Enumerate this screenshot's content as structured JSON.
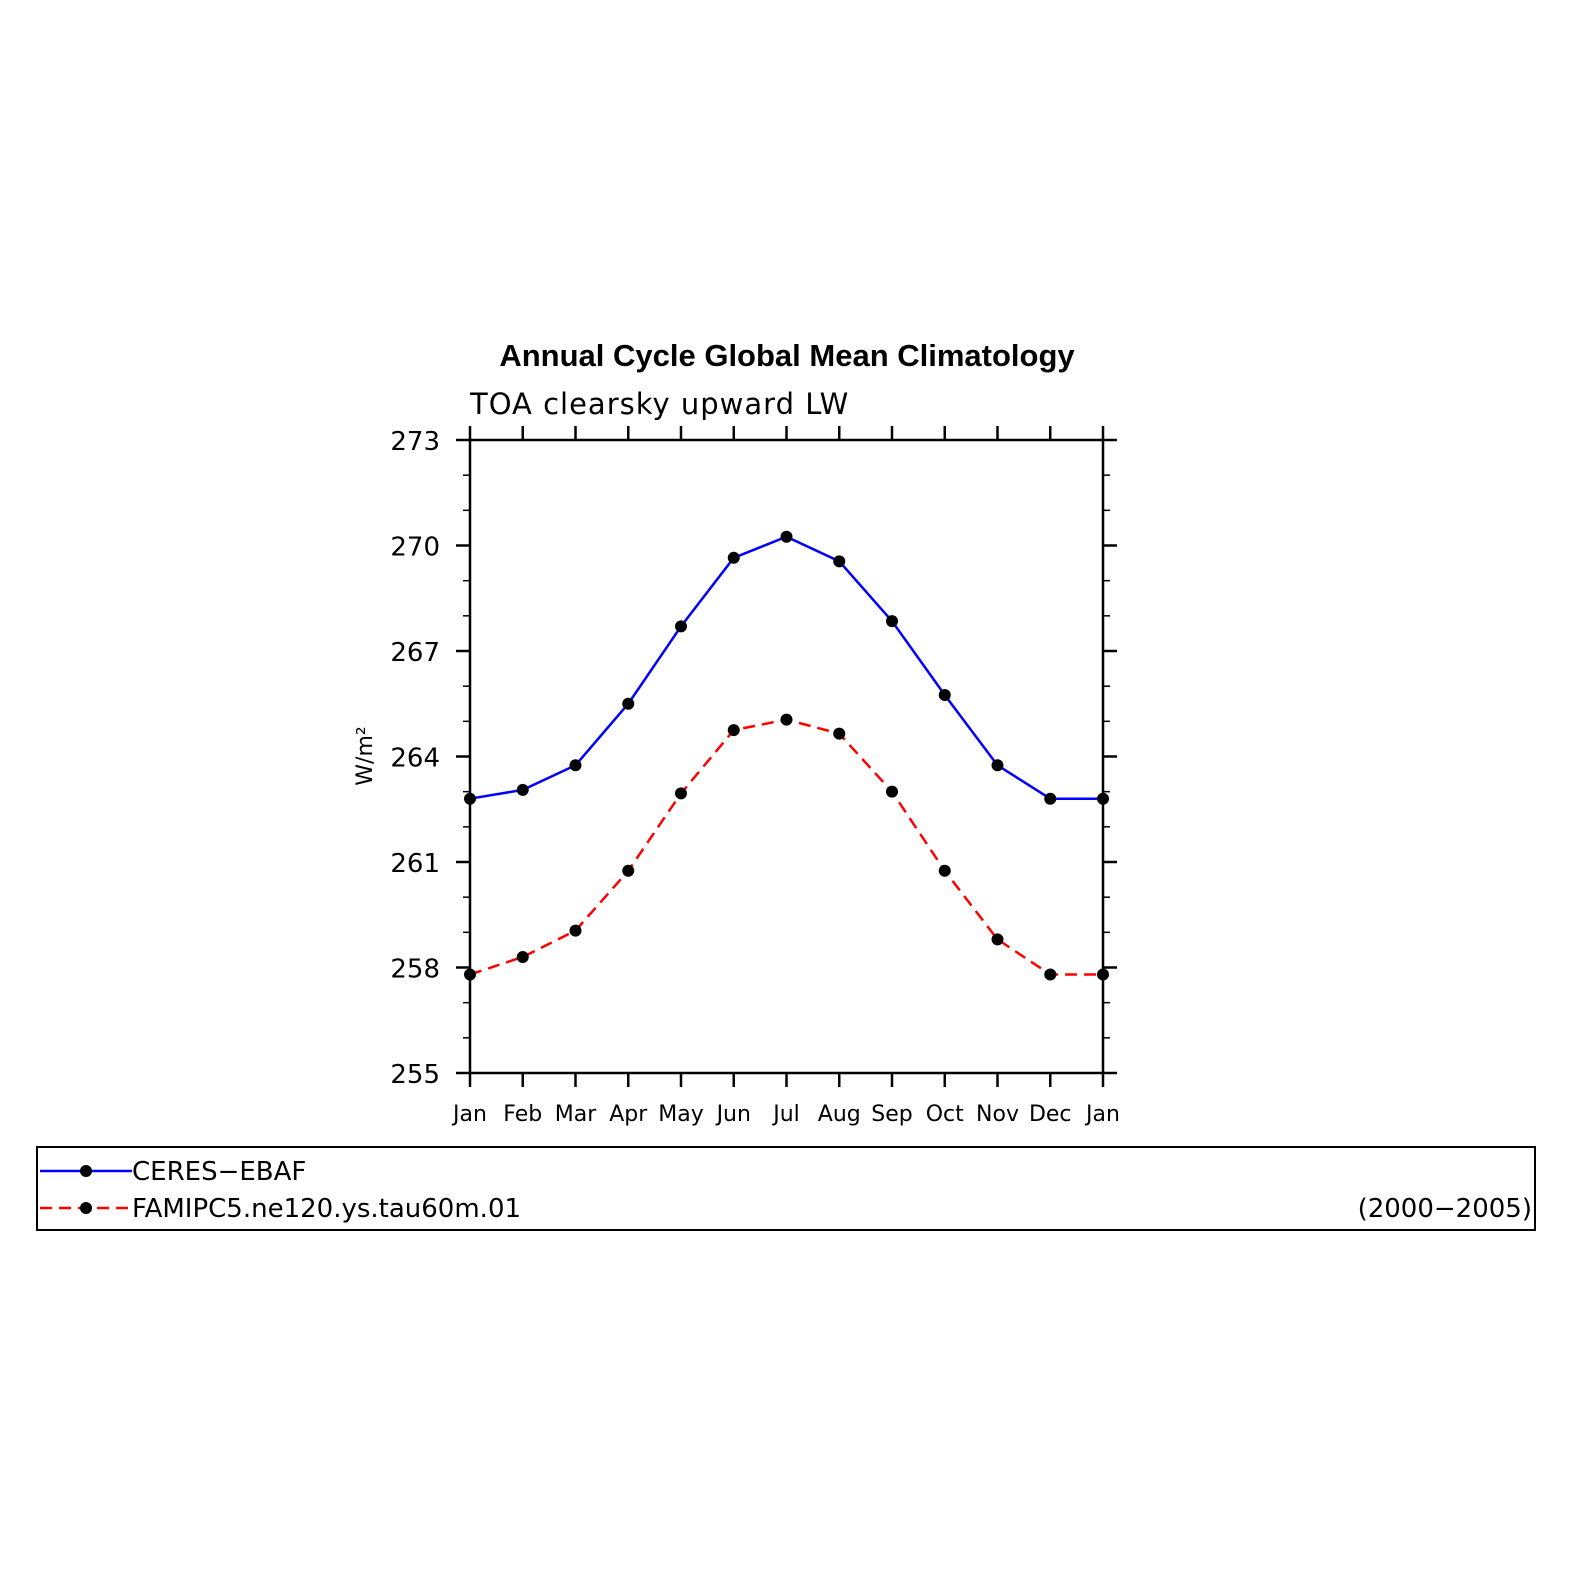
{
  "chart_data": {
    "type": "line",
    "title": "Annual Cycle Global Mean Climatology",
    "subtitle": "TOA clearsky upward LW",
    "ylabel": "W/m²",
    "xlabel": "",
    "categories": [
      "Jan",
      "Feb",
      "Mar",
      "Apr",
      "May",
      "Jun",
      "Jul",
      "Aug",
      "Sep",
      "Oct",
      "Nov",
      "Dec",
      "Jan"
    ],
    "ylim": [
      255,
      273
    ],
    "yticks": [
      255,
      258,
      261,
      264,
      267,
      270,
      273
    ],
    "grid": false,
    "series": [
      {
        "name": "CERES−EBAF",
        "color": "#0000ff",
        "line_style": "solid",
        "marker": "filled-circle",
        "values": [
          262.8,
          263.05,
          263.75,
          265.5,
          267.7,
          269.65,
          270.25,
          269.55,
          267.85,
          265.75,
          263.75,
          262.8,
          262.8
        ]
      },
      {
        "name": "FAMIPC5.ne120.ys.tau60m.01",
        "color": "#ff0000",
        "line_style": "dashed",
        "marker": "filled-circle",
        "values": [
          257.8,
          258.3,
          259.05,
          260.75,
          262.95,
          264.75,
          265.05,
          264.65,
          263.0,
          260.75,
          258.8,
          257.8,
          257.8
        ]
      }
    ],
    "legend": {
      "placement": "bottom",
      "period_label": "(2000−2005)"
    }
  }
}
